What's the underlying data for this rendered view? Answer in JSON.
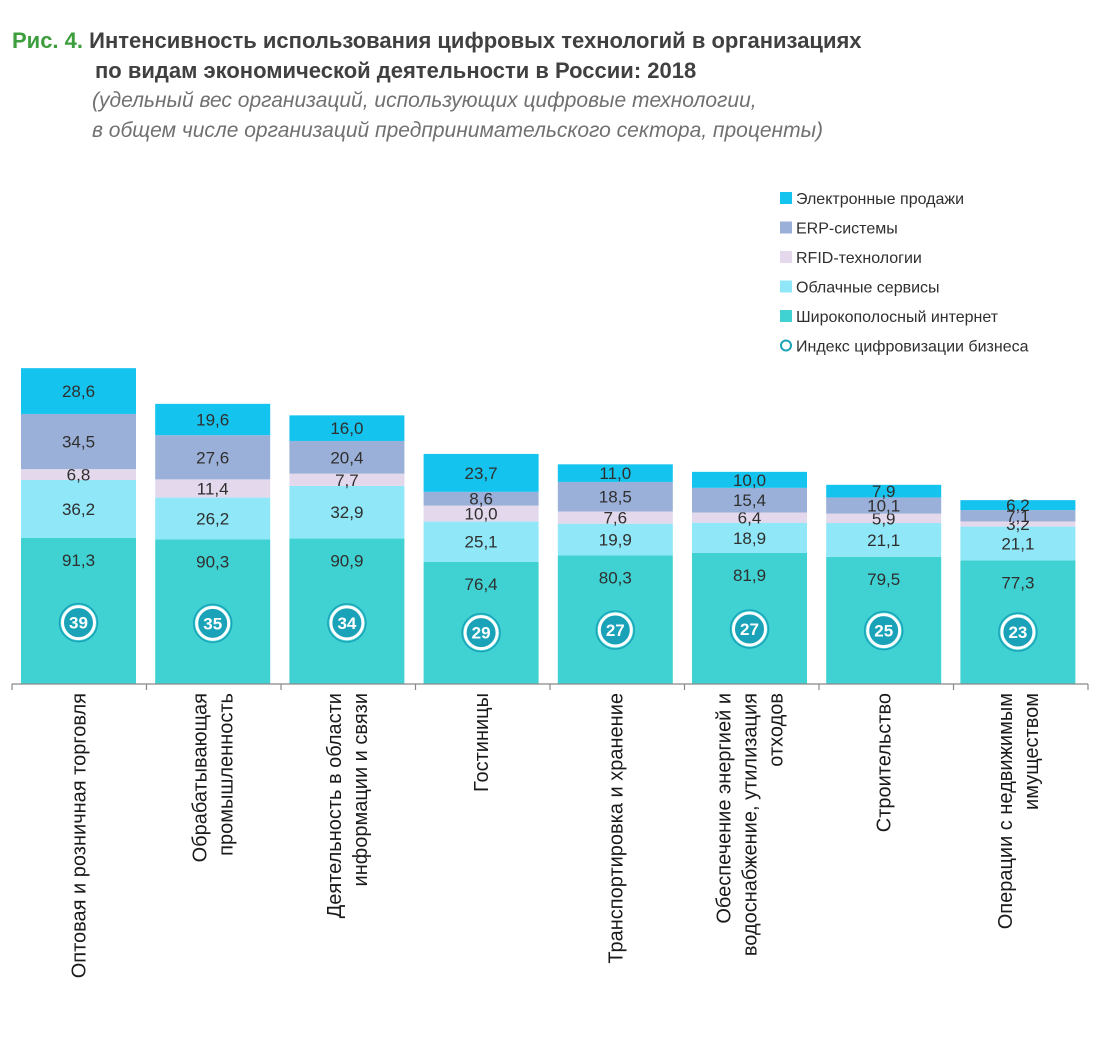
{
  "header": {
    "fig_label": "Рис. 4.",
    "title_line1": "Интенсивность использования цифровых технологий в организациях",
    "title_line2": "по видам экономической деятельности в России: 2018",
    "subtitle_line1": "(удельный вес организаций, использующих цифровые технологии,",
    "subtitle_line2": "в общем числе организаций предпринимательского сектора, проценты)"
  },
  "chart_data": {
    "type": "bar",
    "stacked": true,
    "title": "Интенсивность использования цифровых технологий в организациях по видам экономической деятельности в России: 2018",
    "xlabel": "",
    "ylabel": "",
    "legend_position": "top-right",
    "categories": [
      [
        "Оптовая и розничная торговля"
      ],
      [
        "Обрабатывающая",
        "промышленность"
      ],
      [
        "Деятельность в области",
        "информации и связи"
      ],
      [
        "Гостиницы"
      ],
      [
        "Транспортировка и хранение"
      ],
      [
        "Обеспечение энергией и",
        "водоснабжение, утилизация",
        "отходов"
      ],
      [
        "Строительство"
      ],
      [
        "Операции с недвижимым",
        "имуществом"
      ]
    ],
    "series": [
      {
        "name": "Широкополосный интернет",
        "color": "#40d2d2",
        "values": [
          91.3,
          90.3,
          90.9,
          76.4,
          80.3,
          81.9,
          79.5,
          77.3
        ]
      },
      {
        "name": "Облачные сервисы",
        "color": "#8fe7f7",
        "values": [
          36.2,
          26.2,
          32.9,
          25.1,
          19.9,
          18.9,
          21.1,
          21.1
        ]
      },
      {
        "name": "RFID-технологии",
        "color": "#e3d8ec",
        "values": [
          6.8,
          11.4,
          7.7,
          10.0,
          7.6,
          6.4,
          5.9,
          3.2
        ]
      },
      {
        "name": "ERP-системы",
        "color": "#9bb0d8",
        "values": [
          34.5,
          27.6,
          20.4,
          8.6,
          18.5,
          15.4,
          10.1,
          7.1
        ]
      },
      {
        "name": "Электронные продажи",
        "color": "#14c3ee",
        "values": [
          28.6,
          19.6,
          16.0,
          23.7,
          11.0,
          10.0,
          7.9,
          6.2
        ]
      }
    ],
    "value_labels": [
      [
        "91,3",
        "90,3",
        "90,9",
        "76,4",
        "80,3",
        "81,9",
        "79,5",
        "77,3"
      ],
      [
        "36,2",
        "26,2",
        "32,9",
        "25,1",
        "19,9",
        "18,9",
        "21,1",
        "21,1"
      ],
      [
        "6,8",
        "11,4",
        "7,7",
        "10,0",
        "7,6",
        "6,4",
        "5,9",
        "3,2"
      ],
      [
        "34,5",
        "27,6",
        "20,4",
        "8,6",
        "18,5",
        "15,4",
        "10,1",
        "7,1"
      ],
      [
        "28,6",
        "19,6",
        "16,0",
        "23,7",
        "11,0",
        "10,0",
        "7,9",
        "6,2"
      ]
    ],
    "index": {
      "name": "Индекс цифровизации бизнеса",
      "values": [
        39,
        35,
        34,
        29,
        27,
        27,
        25,
        23
      ],
      "color": "#1aa3b8"
    },
    "legend_order": [
      "Электронные продажи",
      "ERP-системы",
      "RFID-технологии",
      "Облачные сервисы",
      "Широкополосный интернет",
      "Индекс цифровизации бизнеса"
    ],
    "ylim": [
      0,
      215
    ],
    "grid": false
  }
}
